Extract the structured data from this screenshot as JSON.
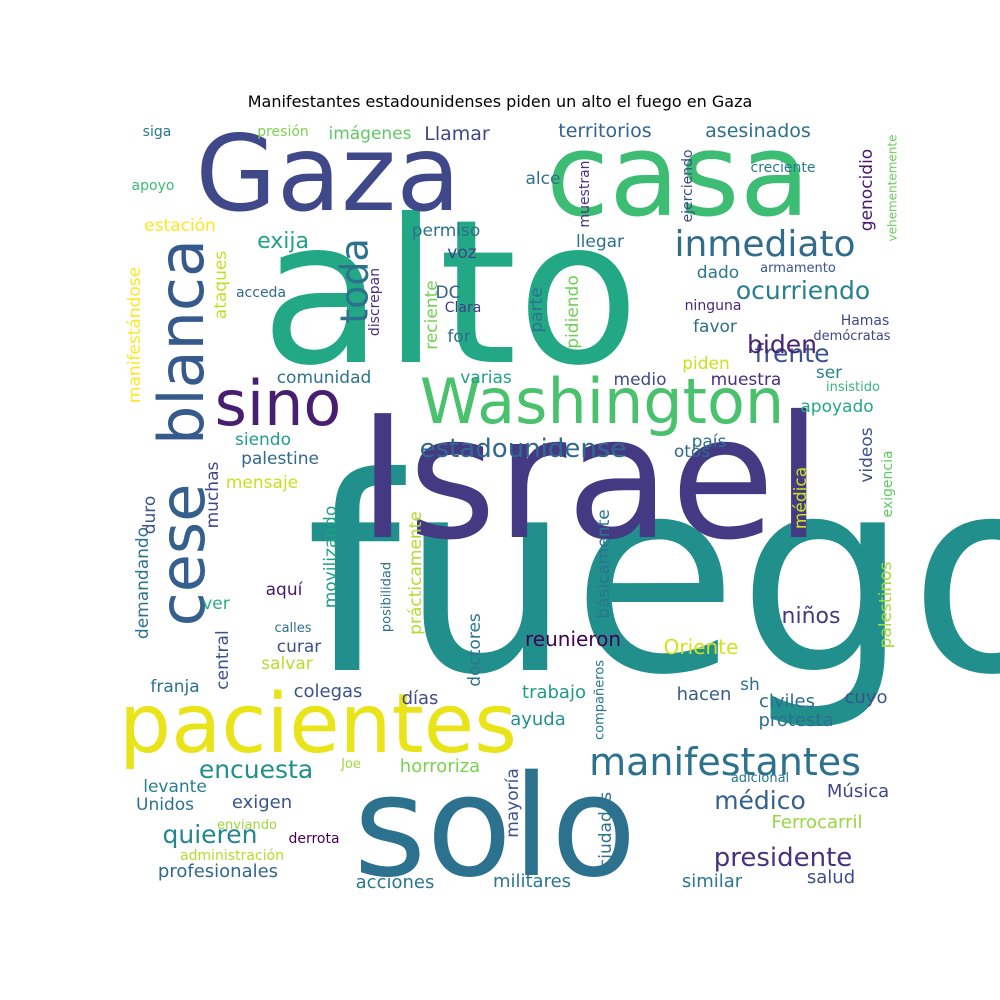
{
  "chart_data": {
    "type": "wordcloud",
    "title": "Manifestantes estadounidenses piden un alto el fuego en Gaza",
    "colormap": "viridis",
    "background": "#ffffff",
    "words": [
      {
        "text": "fuego",
        "color": "#21908d"
      },
      {
        "text": "Israel",
        "color": "#443a83"
      },
      {
        "text": "alto",
        "color": "#22a884"
      },
      {
        "text": "casa",
        "color": "#3dbc74"
      },
      {
        "text": "Gaza",
        "color": "#3f4889"
      },
      {
        "text": "solo",
        "color": "#2c718e"
      },
      {
        "text": "pacientes",
        "color": "#e8e419"
      },
      {
        "text": "Washington",
        "color": "#4ac16d"
      },
      {
        "text": "sino",
        "color": "#481f70"
      },
      {
        "text": "cese",
        "color": "#355f8d"
      },
      {
        "text": "blanca",
        "color": "#375a8c"
      },
      {
        "text": "manifestantes",
        "color": "#2c728e"
      },
      {
        "text": "inmediato",
        "color": "#2f6c8e"
      },
      {
        "text": "toda",
        "color": "#2c718e"
      },
      {
        "text": "presidente",
        "color": "#46337e"
      },
      {
        "text": "estadounidense",
        "color": "#31688e"
      },
      {
        "text": "ocurriendo",
        "color": "#27808e"
      },
      {
        "text": "encuesta",
        "color": "#21908d"
      },
      {
        "text": "médico",
        "color": "#34618d"
      },
      {
        "text": "quieren",
        "color": "#25848e"
      },
      {
        "text": "frente",
        "color": "#3b528b"
      },
      {
        "text": "exija",
        "color": "#20a386"
      },
      {
        "text": "biden",
        "color": "#482475"
      },
      {
        "text": "niños",
        "color": "#443983"
      },
      {
        "text": "reunieron",
        "color": "#440154"
      },
      {
        "text": "Oriente",
        "color": "#d2e21b"
      },
      {
        "text": "territorios",
        "color": "#33638d"
      },
      {
        "text": "asesinados",
        "color": "#2d708e"
      },
      {
        "text": "Llamar",
        "color": "#3f4788"
      },
      {
        "text": "imágenes",
        "color": "#5ec962"
      },
      {
        "text": "profesionales",
        "color": "#31688e"
      },
      {
        "text": "acciones",
        "color": "#2a768e"
      },
      {
        "text": "militares",
        "color": "#2a788e"
      },
      {
        "text": "similar",
        "color": "#2a778e"
      },
      {
        "text": "salud",
        "color": "#3e4a89"
      },
      {
        "text": "Ferrocarril",
        "color": "#95d840"
      },
      {
        "text": "Música",
        "color": "#404688"
      },
      {
        "text": "exigen",
        "color": "#3a548c"
      },
      {
        "text": "horroriza",
        "color": "#7ad151"
      },
      {
        "text": "protesta",
        "color": "#2d708e"
      },
      {
        "text": "civiles",
        "color": "#2f6b8e"
      },
      {
        "text": "hacen",
        "color": "#365c8d"
      },
      {
        "text": "cuyo",
        "color": "#3b528b"
      },
      {
        "text": "trabajo",
        "color": "#1f9a8a"
      },
      {
        "text": "ayuda",
        "color": "#20928c"
      },
      {
        "text": "días",
        "color": "#3e4a89"
      },
      {
        "text": "colegas",
        "color": "#3b528b"
      },
      {
        "text": "curar",
        "color": "#3b528b"
      },
      {
        "text": "salvar",
        "color": "#b5de2b"
      },
      {
        "text": "franja",
        "color": "#2c728e"
      },
      {
        "text": "levante",
        "color": "#26818e"
      },
      {
        "text": "Unidos",
        "color": "#2d708e"
      },
      {
        "text": "aquí",
        "color": "#481769"
      },
      {
        "text": "ver",
        "color": "#28ae80"
      },
      {
        "text": "mensaje",
        "color": "#c8e020"
      },
      {
        "text": "palestine",
        "color": "#31688e"
      },
      {
        "text": "siendo",
        "color": "#1f9e89"
      },
      {
        "text": "comunidad",
        "color": "#2c738e"
      },
      {
        "text": "varias",
        "color": "#20a386"
      },
      {
        "text": "medio",
        "color": "#3e4a89"
      },
      {
        "text": "muestra",
        "color": "#472f7d"
      },
      {
        "text": "piden",
        "color": "#cae11f"
      },
      {
        "text": "ser",
        "color": "#26828e"
      },
      {
        "text": "apoyado",
        "color": "#22a884"
      },
      {
        "text": "país",
        "color": "#2c718e"
      },
      {
        "text": "otos",
        "color": "#31688e"
      },
      {
        "text": "favor",
        "color": "#2d708e"
      },
      {
        "text": "dado",
        "color": "#2a788e"
      },
      {
        "text": "permiso",
        "color": "#2d708e"
      },
      {
        "text": "voz",
        "color": "#404588"
      },
      {
        "text": "llegar",
        "color": "#2c718e"
      },
      {
        "text": "DC",
        "color": "#34618d"
      },
      {
        "text": "for",
        "color": "#2d708e"
      },
      {
        "text": "alce",
        "color": "#2d708e"
      },
      {
        "text": "apoyo",
        "color": "#3dbc74"
      },
      {
        "text": "siga",
        "color": "#2a788e"
      },
      {
        "text": "presión",
        "color": "#7ad151"
      },
      {
        "text": "estación",
        "color": "#fde725"
      },
      {
        "text": "creciente",
        "color": "#2a788e"
      },
      {
        "text": "armamento",
        "color": "#3b528b"
      },
      {
        "text": "ninguna",
        "color": "#482878"
      },
      {
        "text": "Hamas",
        "color": "#3e4a89"
      },
      {
        "text": "demócratas",
        "color": "#404588"
      },
      {
        "text": "insistido",
        "color": "#35b779"
      },
      {
        "text": "acceda",
        "color": "#31688e"
      },
      {
        "text": "Clara",
        "color": "#443983"
      },
      {
        "text": "Joe",
        "color": "#a0da39"
      },
      {
        "text": "adicional",
        "color": "#2a778e"
      },
      {
        "text": "derrota",
        "color": "#440154"
      },
      {
        "text": "enviando",
        "color": "#9fda3a"
      },
      {
        "text": "administración",
        "color": "#b2dd2d"
      },
      {
        "text": "calles",
        "color": "#2c728e"
      },
      {
        "text": "vehementemente",
        "color": "#6ccd5a"
      },
      {
        "text": "genocidio",
        "color": "#481769"
      },
      {
        "text": "ejerciendo",
        "color": "#3e4c8a"
      },
      {
        "text": "muestran",
        "color": "#453581"
      },
      {
        "text": "ataques",
        "color": "#c2df23"
      },
      {
        "text": "manifestándose",
        "color": "#fde725"
      },
      {
        "text": "discrepan",
        "color": "#46327e"
      },
      {
        "text": "reciente",
        "color": "#75d054"
      },
      {
        "text": "parte",
        "color": "#2c728e"
      },
      {
        "text": "pidiendo",
        "color": "#6ece58"
      },
      {
        "text": "videos",
        "color": "#3b528b"
      },
      {
        "text": "exigencia",
        "color": "#5ec962"
      },
      {
        "text": "médica",
        "color": "#cde11d"
      },
      {
        "text": "palestinos",
        "color": "#a5db36"
      },
      {
        "text": "básicamente",
        "color": "#2b748e"
      },
      {
        "text": "movilizando",
        "color": "#1fa088"
      },
      {
        "text": "muchas",
        "color": "#3e4989"
      },
      {
        "text": "demandando",
        "color": "#2c718e"
      },
      {
        "text": "duro",
        "color": "#3b528b"
      },
      {
        "text": "central",
        "color": "#3b518b"
      },
      {
        "text": "prácticamente",
        "color": "#b0dd2f"
      },
      {
        "text": "posibilidad",
        "color": "#2c728e"
      },
      {
        "text": "doctores",
        "color": "#2a788e"
      },
      {
        "text": "compañeros",
        "color": "#2a768e"
      },
      {
        "text": "mayoría",
        "color": "#3b528b"
      },
      {
        "text": "ciudades",
        "color": "#2c728e"
      },
      {
        "text": "sh",
        "color": "#2d708e"
      }
    ]
  }
}
